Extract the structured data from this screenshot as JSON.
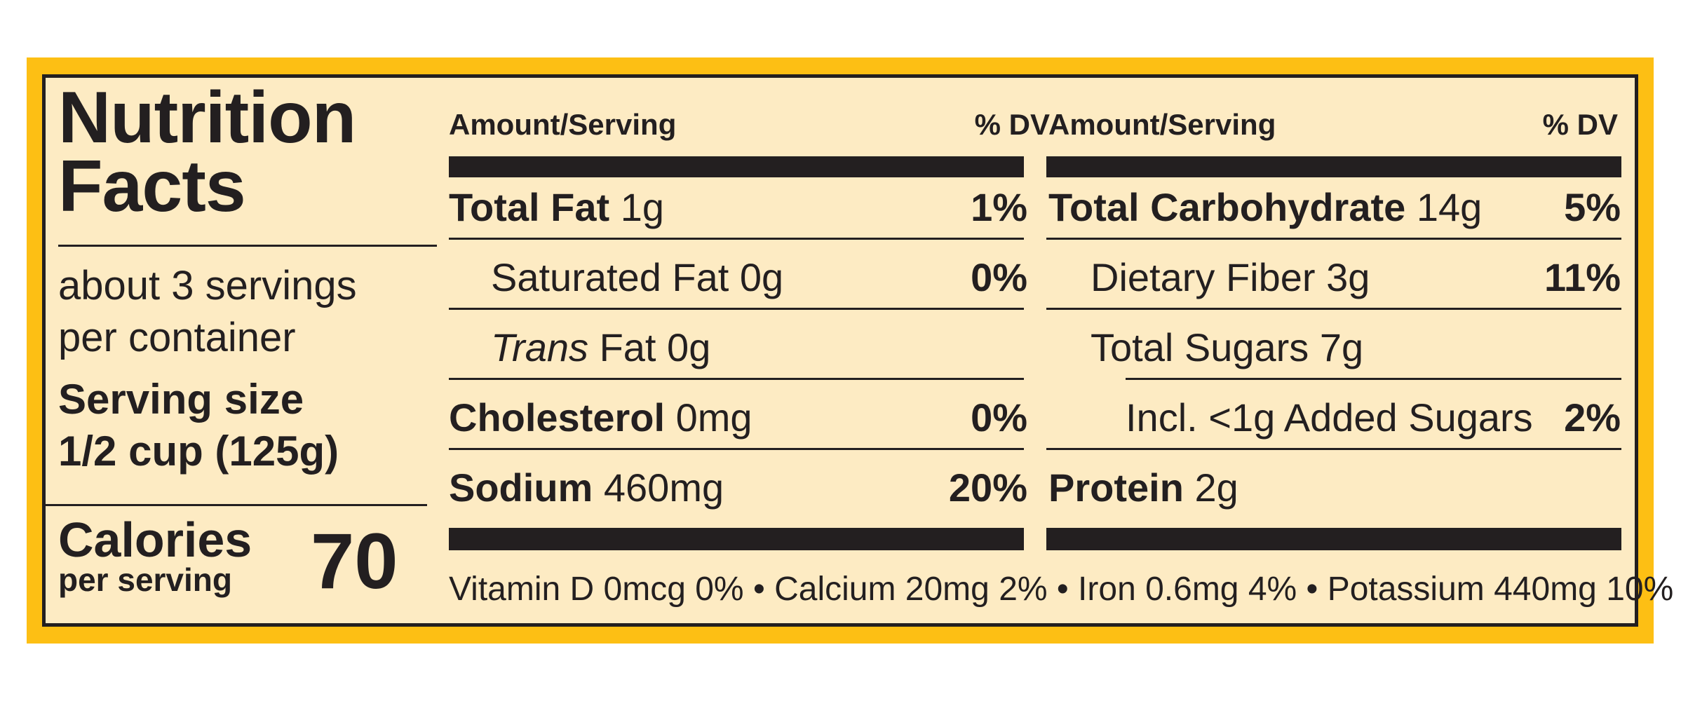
{
  "title": {
    "line1": "Nutrition",
    "line2": "Facts"
  },
  "servings": {
    "line1": "about 3 servings",
    "line2": "per container"
  },
  "serving_size": {
    "label": "Serving size",
    "value": "1/2 cup (125g)"
  },
  "calories": {
    "label": "Calories",
    "sublabel": "per serving",
    "value": "70"
  },
  "header": {
    "amount": "Amount/Serving",
    "dv": "% DV"
  },
  "left_col": [
    {
      "name": "Total Fat",
      "amount": "1g",
      "dv": "1%"
    },
    {
      "name": "Saturated Fat",
      "amount": "0g",
      "dv": "0%"
    },
    {
      "name": "Trans",
      "name_rest": "Fat",
      "amount": "0g",
      "dv": ""
    },
    {
      "name": "Cholesterol",
      "amount": "0mg",
      "dv": "0%"
    },
    {
      "name": "Sodium",
      "amount": "460mg",
      "dv": "20%"
    }
  ],
  "right_col": [
    {
      "name": "Total Carbohydrate",
      "amount": "14g",
      "dv": "5%"
    },
    {
      "name": "Dietary Fiber",
      "amount": "3g",
      "dv": "11%"
    },
    {
      "name": "Total Sugars",
      "amount": "7g",
      "dv": ""
    },
    {
      "name": "Incl. <1g Added Sugars",
      "amount": "",
      "dv": "2%"
    },
    {
      "name": "Protein",
      "amount": "2g",
      "dv": ""
    }
  ],
  "footer": "Vitamin D 0mcg 0% • Calcium 20mg 2% • Iron 0.6mg 4% • Potassium 440mg 10%",
  "colors": {
    "frame": "#fdbf14",
    "panel": "#fdebc3",
    "ink": "#231f20"
  }
}
